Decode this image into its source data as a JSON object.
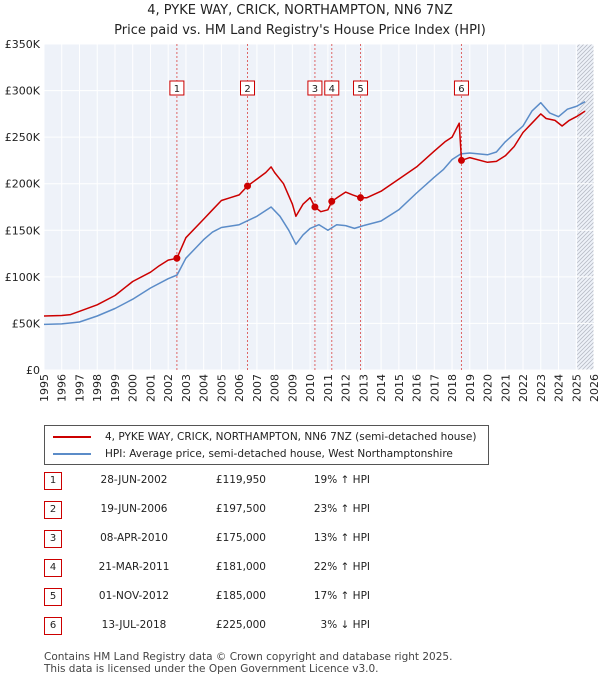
{
  "title": {
    "line1": "4, PYKE WAY, CRICK, NORTHAMPTON, NN6 7NZ",
    "line2": "Price paid vs. HM Land Registry's House Price Index (HPI)"
  },
  "chart_data": {
    "type": "line",
    "title": "4, PYKE WAY, CRICK, NORTHAMPTON, NN6 7NZ — Price paid vs. HM Land Registry's House Price Index (HPI)",
    "xlabel": "",
    "ylabel": "",
    "xlim": [
      1995,
      2026
    ],
    "ylim": [
      0,
      350000
    ],
    "x_ticks": [
      1995,
      1996,
      1997,
      1998,
      1999,
      2000,
      2001,
      2002,
      2003,
      2004,
      2005,
      2006,
      2007,
      2008,
      2009,
      2010,
      2011,
      2012,
      2013,
      2014,
      2015,
      2016,
      2017,
      2018,
      2019,
      2020,
      2021,
      2022,
      2023,
      2024,
      2025,
      2026
    ],
    "y_ticks": [
      0,
      50000,
      100000,
      150000,
      200000,
      250000,
      300000,
      350000
    ],
    "y_tick_labels": [
      "£0",
      "£50K",
      "£100K",
      "£150K",
      "£200K",
      "£250K",
      "£300K",
      "£350K"
    ],
    "forecast_start": 2025.05,
    "series": [
      {
        "name": "4, PYKE WAY, CRICK, NORTHAMPTON, NN6 7NZ (semi-detached house)",
        "color": "#cc0000",
        "points": [
          [
            1995.0,
            58000
          ],
          [
            1996.0,
            58500
          ],
          [
            1996.5,
            59500
          ],
          [
            1997.0,
            63000
          ],
          [
            1998.0,
            70000
          ],
          [
            1999.0,
            80000
          ],
          [
            2000.0,
            95000
          ],
          [
            2001.0,
            105000
          ],
          [
            2001.5,
            112000
          ],
          [
            2002.0,
            118000
          ],
          [
            2002.49,
            119950
          ],
          [
            2003.0,
            142000
          ],
          [
            2004.0,
            162000
          ],
          [
            2004.5,
            172000
          ],
          [
            2005.0,
            182000
          ],
          [
            2005.5,
            185000
          ],
          [
            2006.0,
            188000
          ],
          [
            2006.47,
            197500
          ],
          [
            2007.0,
            205000
          ],
          [
            2007.5,
            212000
          ],
          [
            2007.8,
            218000
          ],
          [
            2008.0,
            212000
          ],
          [
            2008.5,
            200000
          ],
          [
            2009.0,
            178000
          ],
          [
            2009.2,
            165000
          ],
          [
            2009.6,
            178000
          ],
          [
            2010.0,
            185000
          ],
          [
            2010.27,
            175000
          ],
          [
            2010.6,
            170000
          ],
          [
            2011.0,
            172000
          ],
          [
            2011.22,
            181000
          ],
          [
            2011.6,
            186000
          ],
          [
            2012.0,
            191000
          ],
          [
            2012.4,
            188000
          ],
          [
            2012.84,
            185000
          ],
          [
            2013.2,
            185000
          ],
          [
            2014.0,
            192000
          ],
          [
            2015.0,
            205000
          ],
          [
            2016.0,
            218000
          ],
          [
            2017.0,
            235000
          ],
          [
            2017.6,
            245000
          ],
          [
            2018.0,
            250000
          ],
          [
            2018.4,
            265000
          ],
          [
            2018.53,
            225000
          ],
          [
            2019.0,
            228000
          ],
          [
            2020.0,
            223000
          ],
          [
            2020.5,
            224000
          ],
          [
            2021.0,
            230000
          ],
          [
            2021.5,
            240000
          ],
          [
            2022.0,
            255000
          ],
          [
            2022.5,
            265000
          ],
          [
            2023.0,
            275000
          ],
          [
            2023.3,
            270000
          ],
          [
            2023.8,
            268000
          ],
          [
            2024.2,
            262000
          ],
          [
            2024.6,
            268000
          ],
          [
            2025.0,
            272000
          ],
          [
            2025.5,
            278000
          ]
        ]
      },
      {
        "name": "HPI: Average price, semi-detached house, West Northamptonshire",
        "color": "#5b8cc8",
        "points": [
          [
            1995.0,
            49000
          ],
          [
            1996.0,
            49500
          ],
          [
            1997.0,
            51500
          ],
          [
            1998.0,
            58000
          ],
          [
            1999.0,
            66000
          ],
          [
            2000.0,
            76000
          ],
          [
            2001.0,
            88000
          ],
          [
            2002.0,
            98000
          ],
          [
            2002.5,
            102000
          ],
          [
            2003.0,
            120000
          ],
          [
            2004.0,
            140000
          ],
          [
            2004.5,
            148000
          ],
          [
            2005.0,
            153000
          ],
          [
            2006.0,
            156000
          ],
          [
            2007.0,
            165000
          ],
          [
            2007.8,
            175000
          ],
          [
            2008.3,
            165000
          ],
          [
            2008.8,
            150000
          ],
          [
            2009.2,
            135000
          ],
          [
            2009.6,
            145000
          ],
          [
            2010.0,
            152000
          ],
          [
            2010.5,
            156000
          ],
          [
            2011.0,
            150000
          ],
          [
            2011.5,
            156000
          ],
          [
            2012.0,
            155000
          ],
          [
            2012.5,
            152000
          ],
          [
            2013.0,
            155000
          ],
          [
            2014.0,
            160000
          ],
          [
            2015.0,
            172000
          ],
          [
            2016.0,
            190000
          ],
          [
            2017.0,
            207000
          ],
          [
            2017.5,
            215000
          ],
          [
            2018.0,
            226000
          ],
          [
            2018.5,
            232000
          ],
          [
            2019.0,
            233000
          ],
          [
            2020.0,
            231000
          ],
          [
            2020.5,
            234000
          ],
          [
            2021.0,
            245000
          ],
          [
            2022.0,
            262000
          ],
          [
            2022.5,
            278000
          ],
          [
            2023.0,
            287000
          ],
          [
            2023.5,
            276000
          ],
          [
            2024.0,
            272000
          ],
          [
            2024.5,
            280000
          ],
          [
            2025.0,
            283000
          ],
          [
            2025.5,
            288000
          ]
        ]
      }
    ],
    "sales": [
      {
        "id": "1",
        "date": "28-JUN-2002",
        "x": 2002.49,
        "price": 119950,
        "price_label": "£119,950",
        "hpi": "19% ↑ HPI"
      },
      {
        "id": "2",
        "date": "19-JUN-2006",
        "x": 2006.47,
        "price": 197500,
        "price_label": "£197,500",
        "hpi": "23% ↑ HPI"
      },
      {
        "id": "3",
        "date": "08-APR-2010",
        "x": 2010.27,
        "price": 175000,
        "price_label": "£175,000",
        "hpi": "13% ↑ HPI"
      },
      {
        "id": "4",
        "date": "21-MAR-2011",
        "x": 2011.22,
        "price": 181000,
        "price_label": "£181,000",
        "hpi": "22% ↑ HPI"
      },
      {
        "id": "5",
        "date": "01-NOV-2012",
        "x": 2012.84,
        "price": 185000,
        "price_label": "£185,000",
        "hpi": "17% ↑ HPI"
      },
      {
        "id": "6",
        "date": "13-JUL-2018",
        "x": 2018.53,
        "price": 225000,
        "price_label": "£225,000",
        "hpi": "3% ↓ HPI"
      }
    ]
  },
  "legend": {
    "property_label": "4, PYKE WAY, CRICK, NORTHAMPTON, NN6 7NZ (semi-detached house)",
    "hpi_label": "HPI: Average price, semi-detached house, West Northamptonshire",
    "property_color": "#cc0000",
    "hpi_color": "#5b8cc8"
  },
  "colors": {
    "plot_bg": "#eef2f9",
    "grid": "#ffffff",
    "marker_box": "#cc0000",
    "vline": "#dd6666"
  },
  "footer": {
    "line1": "Contains HM Land Registry data © Crown copyright and database right 2025.",
    "line2": "This data is licensed under the Open Government Licence v3.0."
  }
}
